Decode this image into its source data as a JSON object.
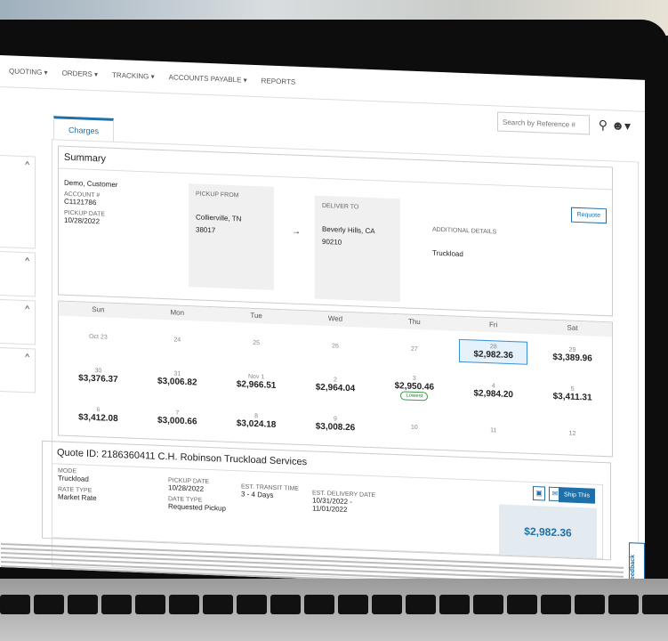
{
  "nav": {
    "items": [
      "QUOTING ▾",
      "ORDERS ▾",
      "TRACKING ▾",
      "ACCOUNTS PAYABLE ▾",
      "REPORTS"
    ]
  },
  "search": {
    "placeholder": "Search by Reference #"
  },
  "tabs": [
    {
      "label": "Charges"
    }
  ],
  "summary": {
    "title": "Summary",
    "customer": "Demo, Customer",
    "account_label": "ACCOUNT #",
    "account": "C1121786",
    "pickup_date_label": "PICKUP DATE",
    "pickup_date": "10/28/2022",
    "pickup_from_label": "PICKUP FROM",
    "pickup_from": "Collierville, TN",
    "pickup_zip": "38017",
    "arrow": "→",
    "deliver_to_label": "DELIVER TO",
    "deliver_to": "Beverly Hills, CA",
    "deliver_zip": "90210",
    "additional_label": "ADDITIONAL DETAILS",
    "additional": "Truckload",
    "requote": "Requote"
  },
  "calendar": {
    "days": [
      "Sun",
      "Mon",
      "Tue",
      "Wed",
      "Thu",
      "Fri",
      "Sat"
    ],
    "rows": [
      [
        {
          "d": "Oct 23",
          "p": ""
        },
        {
          "d": "24",
          "p": ""
        },
        {
          "d": "25",
          "p": ""
        },
        {
          "d": "26",
          "p": ""
        },
        {
          "d": "27",
          "p": ""
        },
        {
          "d": "28",
          "p": "$2,982.36",
          "selected": true
        },
        {
          "d": "29",
          "p": "$3,389.96"
        }
      ],
      [
        {
          "d": "30",
          "p": "$3,376.37"
        },
        {
          "d": "31",
          "p": "$3,006.82"
        },
        {
          "d": "Nov 1",
          "p": "$2,966.51"
        },
        {
          "d": "2",
          "p": "$2,964.04"
        },
        {
          "d": "3",
          "p": "$2,950.46",
          "badge": "Lowest"
        },
        {
          "d": "4",
          "p": "$2,984.20"
        },
        {
          "d": "5",
          "p": "$3,411.31"
        }
      ],
      [
        {
          "d": "6",
          "p": "$3,412.08"
        },
        {
          "d": "7",
          "p": "$3,000.66"
        },
        {
          "d": "8",
          "p": "$3,024.18"
        },
        {
          "d": "9",
          "p": "$3,008.26"
        },
        {
          "d": "10",
          "p": ""
        },
        {
          "d": "11",
          "p": ""
        },
        {
          "d": "12",
          "p": ""
        }
      ]
    ]
  },
  "quote": {
    "title": "Quote ID: 2186360411  C.H. Robinson Truckload Services",
    "mode_label": "MODE",
    "mode": "Truckload",
    "rate_type_label": "RATE TYPE",
    "rate_type": "Market Rate",
    "pickup_date_label": "PICKUP DATE",
    "pickup_date": "10/28/2022",
    "date_type_label": "DATE TYPE",
    "date_type": "Requested Pickup",
    "transit_label": "EST. TRANSIT TIME",
    "transit": "3 - 4 Days",
    "delivery_label": "EST. DELIVERY DATE",
    "delivery": "10/31/2022 -",
    "delivery2": "11/01/2022",
    "ship_label": "Ship This",
    "price": "$2,982.36"
  },
  "feedback": "Feedback",
  "colors": {
    "accent": "#1f6fa8",
    "selected_bg": "#e6f2fb",
    "lowest": "#3a9a4a"
  }
}
